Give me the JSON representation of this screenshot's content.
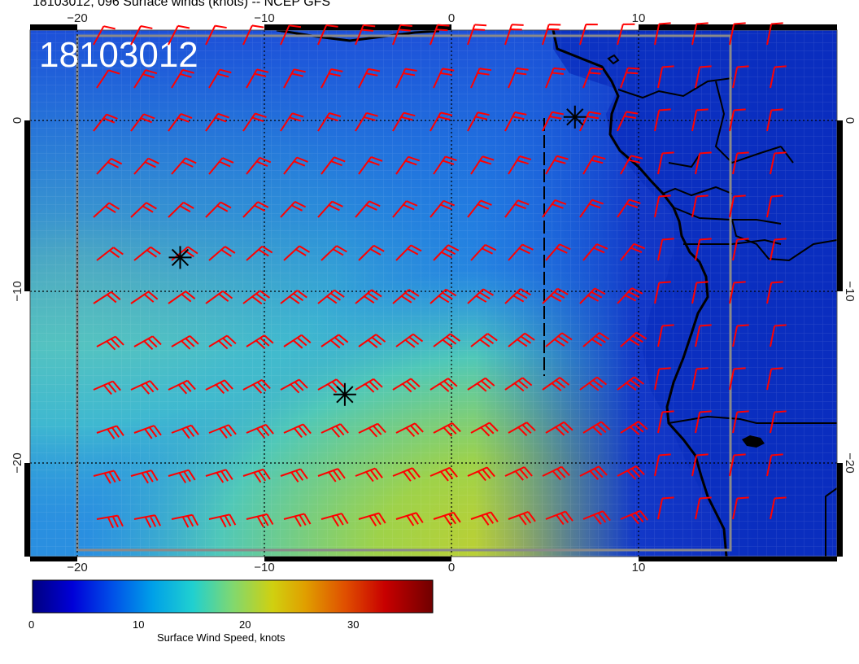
{
  "title": "18103012, 096 Surface winds (knots) -- NCEP GFS",
  "stamp": "18103012",
  "x_axis": {
    "ticks": [
      "−20",
      "−10",
      "0",
      "10"
    ]
  },
  "y_axis": {
    "ticks": [
      "0",
      "−10",
      "−20"
    ]
  },
  "colorbar": {
    "label": "Surface Wind Speed, knots",
    "ticks": [
      "0",
      "10",
      "20",
      "30"
    ],
    "range_knots": [
      0,
      37
    ],
    "colors": [
      "#00007f",
      "#0000d8",
      "#0060e8",
      "#00b0e0",
      "#30d0c8",
      "#60d890",
      "#b0d040",
      "#d8c800",
      "#e09000",
      "#d84000",
      "#c00000",
      "#700000"
    ]
  },
  "map": {
    "projection": "lat-lon",
    "lon_range": [
      -22.5,
      20.5
    ],
    "lat_range": [
      -25.5,
      5.5
    ],
    "marker_icon": "asterisk-marker-icon",
    "markers": [
      {
        "lon": -14.5,
        "lat": -8
      },
      {
        "lon": -5.7,
        "lat": -16
      },
      {
        "lon": 6.6,
        "lat": 0.2
      }
    ],
    "barb_color": "#ff0000"
  }
}
